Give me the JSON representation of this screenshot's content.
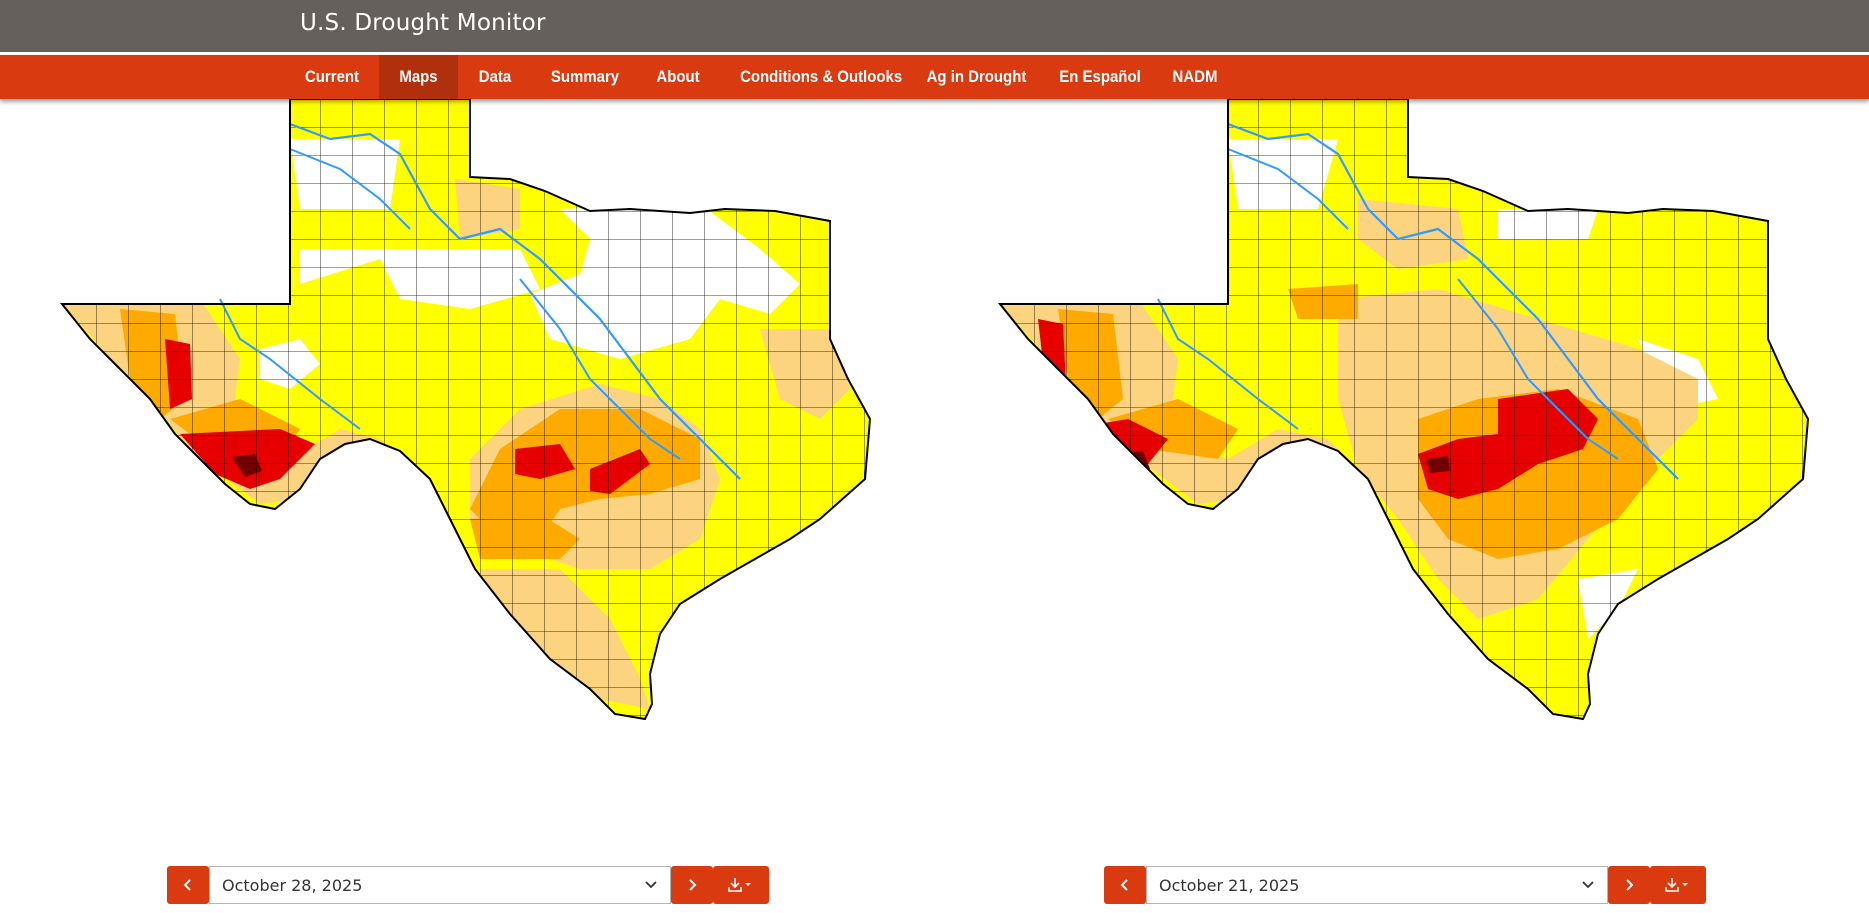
{
  "header": {
    "title": "U.S. Drought Monitor"
  },
  "nav": {
    "items": [
      {
        "label": "Current"
      },
      {
        "label": "Maps",
        "active": true
      },
      {
        "label": "Data"
      },
      {
        "label": "Summary"
      },
      {
        "label": "About"
      },
      {
        "label": "Conditions & Outlooks"
      },
      {
        "label": "Ag in Drought"
      },
      {
        "label": "En Español"
      },
      {
        "label": "NADM"
      }
    ]
  },
  "maps": [
    {
      "date": "October 28, 2025"
    },
    {
      "date": "October 21, 2025"
    }
  ],
  "icons": {
    "prev": "chevron-left-icon",
    "next": "chevron-right-icon",
    "dropdown": "chevron-down-icon",
    "download": "download-icon",
    "caret": "caret-down-icon"
  },
  "colors": {
    "header_bg": "#66605c",
    "nav_bg": "#d93a10",
    "nav_active_bg": "#b0300d",
    "D0": "#ffff00",
    "D1": "#fcd37f",
    "D2": "#ffaa00",
    "D3": "#e60000",
    "D4": "#730000",
    "rivers": "#3399ff"
  }
}
